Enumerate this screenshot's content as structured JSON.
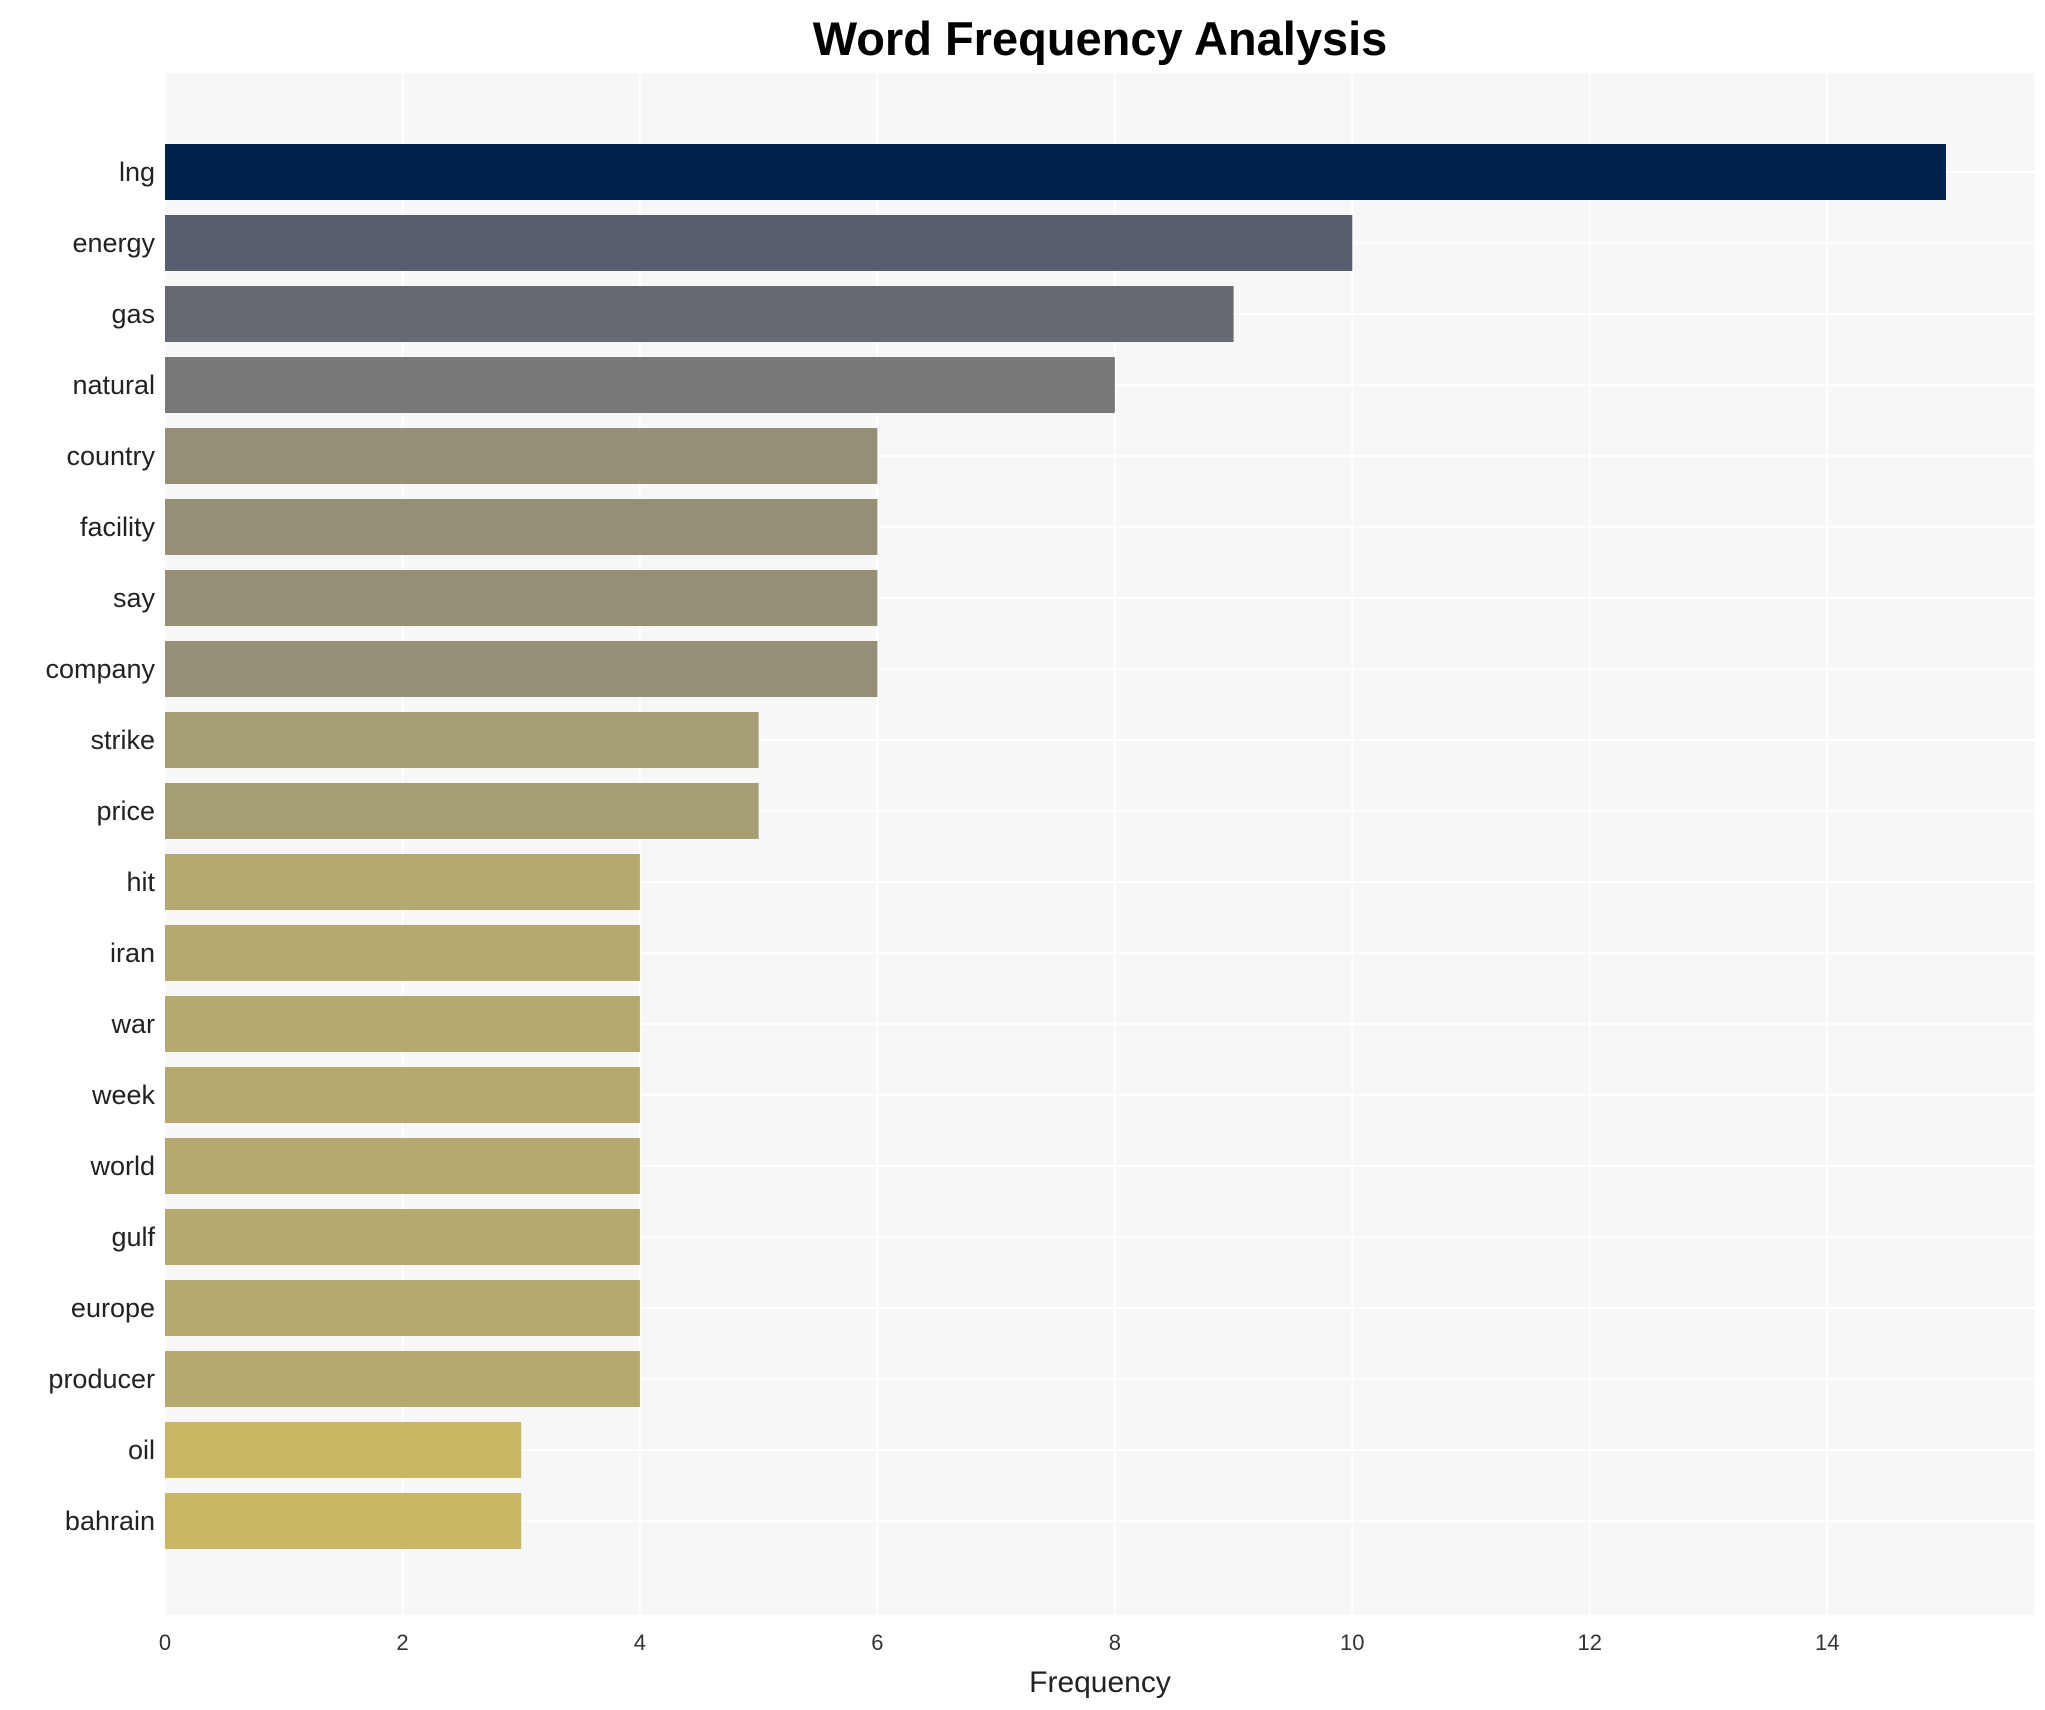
{
  "chart_data": {
    "type": "bar",
    "orientation": "horizontal",
    "title": "Word Frequency Analysis",
    "xlabel": "Frequency",
    "ylabel": "",
    "xlim": [
      0,
      15.75
    ],
    "xticks": [
      0,
      2,
      4,
      6,
      8,
      10,
      12,
      14
    ],
    "grid": true,
    "categories": [
      "lng",
      "energy",
      "gas",
      "natural",
      "country",
      "facility",
      "say",
      "company",
      "strike",
      "price",
      "hit",
      "iran",
      "war",
      "week",
      "world",
      "gulf",
      "europe",
      "producer",
      "oil",
      "bahrain"
    ],
    "values": [
      15,
      10,
      9,
      8,
      6,
      6,
      6,
      6,
      5,
      5,
      4,
      4,
      4,
      4,
      4,
      4,
      4,
      4,
      3,
      3
    ],
    "colors": [
      "#00224e",
      "#575d6d",
      "#666970",
      "#787877",
      "#958f76",
      "#958f76",
      "#958f76",
      "#958f76",
      "#a59d73",
      "#a59d73",
      "#b6a96f",
      "#b6a96f",
      "#b6a96f",
      "#b6a96f",
      "#b6a96f",
      "#b6a96f",
      "#b6a96f",
      "#b6a96f",
      "#c8b765",
      "#c8b765"
    ],
    "background": "#f7f7f7"
  }
}
